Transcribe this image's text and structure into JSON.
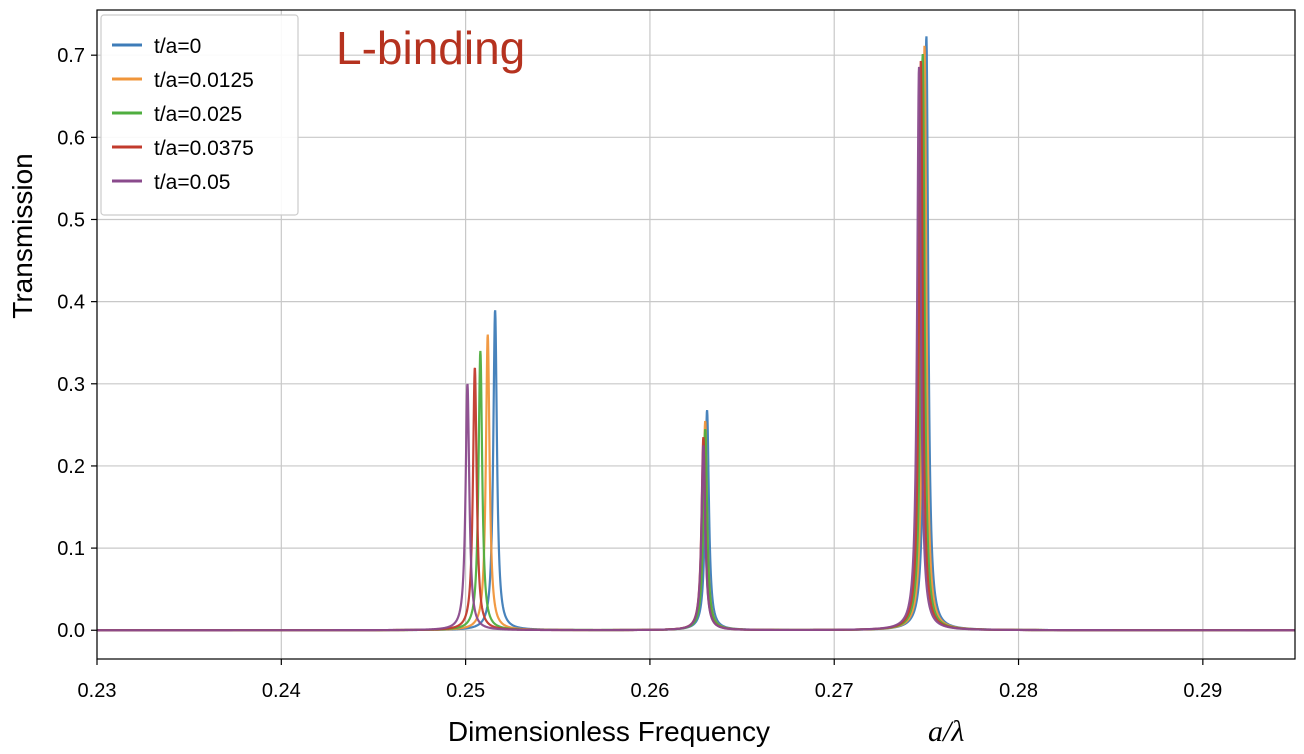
{
  "chart_data": {
    "type": "line",
    "title": "",
    "annotation": {
      "text": "L-binding",
      "color": "#b5321f"
    },
    "xlabel": "Dimensionless Frequency",
    "xlabel_math": "a/λ",
    "ylabel": "Transmission",
    "xlim": [
      0.23,
      0.295
    ],
    "ylim": [
      -0.035,
      0.755
    ],
    "x_ticks": [
      0.23,
      0.24,
      0.25,
      0.26,
      0.27,
      0.28,
      0.29
    ],
    "x_tick_labels": [
      "0.23",
      "0.24",
      "0.25",
      "0.26",
      "0.27",
      "0.28",
      "0.29"
    ],
    "y_ticks": [
      0.0,
      0.1,
      0.2,
      0.3,
      0.4,
      0.5,
      0.6,
      0.7
    ],
    "y_tick_labels": [
      "0.0",
      "0.1",
      "0.2",
      "0.3",
      "0.4",
      "0.5",
      "0.6",
      "0.7"
    ],
    "grid": true,
    "legend_position": "top-left",
    "series": [
      {
        "name": "t/a=0",
        "color": "#3e7cb8",
        "peaks": [
          {
            "x": 0.2516,
            "y": 0.39
          },
          {
            "x": 0.2631,
            "y": 0.268
          },
          {
            "x": 0.275,
            "y": 0.724
          }
        ]
      },
      {
        "name": "t/a=0.0125",
        "color": "#f0953a",
        "peaks": [
          {
            "x": 0.2512,
            "y": 0.36
          },
          {
            "x": 0.263,
            "y": 0.255
          },
          {
            "x": 0.2749,
            "y": 0.712
          }
        ]
      },
      {
        "name": "t/a=0.025",
        "color": "#4fae3f",
        "peaks": [
          {
            "x": 0.2508,
            "y": 0.34
          },
          {
            "x": 0.263,
            "y": 0.245
          },
          {
            "x": 0.2748,
            "y": 0.702
          }
        ]
      },
      {
        "name": "t/a=0.0375",
        "color": "#c23b2d",
        "peaks": [
          {
            "x": 0.2505,
            "y": 0.32
          },
          {
            "x": 0.2629,
            "y": 0.235
          },
          {
            "x": 0.2747,
            "y": 0.694
          }
        ]
      },
      {
        "name": "t/a=0.05",
        "color": "#8a4a8c",
        "peaks": [
          {
            "x": 0.2501,
            "y": 0.3
          },
          {
            "x": 0.2629,
            "y": 0.225
          },
          {
            "x": 0.2746,
            "y": 0.686
          }
        ]
      }
    ]
  }
}
